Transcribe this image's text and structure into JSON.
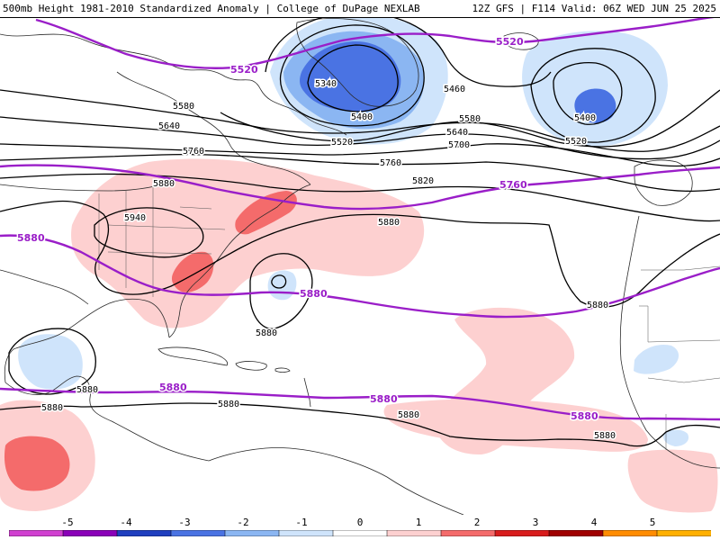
{
  "header": {
    "left_title": "500mb Height 1981-2010 Standardized Anomaly | College of DuPage NEXLAB",
    "right_title": "12Z GFS | F114 Valid: 06Z WED JUN 25 2025"
  },
  "colors": {
    "anom_neg_1": "#cfe4fb",
    "anom_neg_2": "#8bb6f2",
    "anom_neg_3": "#4a73e3",
    "anom_pos_1": "#fdd0d0",
    "anom_pos_2": "#f46b6b",
    "climo_contour": "#9a1ec8",
    "height_contour": "#000000",
    "coastline": "#2a2a2a"
  },
  "height_labels": [
    "5340",
    "5400",
    "5460",
    "5520",
    "5580",
    "5640",
    "5700",
    "5760",
    "5820",
    "5880",
    "5940"
  ],
  "climo_labels": [
    "5520",
    "5760",
    "5880"
  ],
  "legend": {
    "ticks": [
      "-5",
      "-4",
      "-3",
      "-2",
      "-1",
      "0",
      "1",
      "2",
      "3",
      "4",
      "5"
    ],
    "colors": [
      "#d040d0",
      "#8a00b8",
      "#1f3fbf",
      "#4a73e3",
      "#8bb6f2",
      "#cfe4fb",
      "#ffffff",
      "#fdd0d0",
      "#f46b6b",
      "#d81c1c",
      "#a00000",
      "#ff8c00",
      "#ffb000"
    ]
  }
}
